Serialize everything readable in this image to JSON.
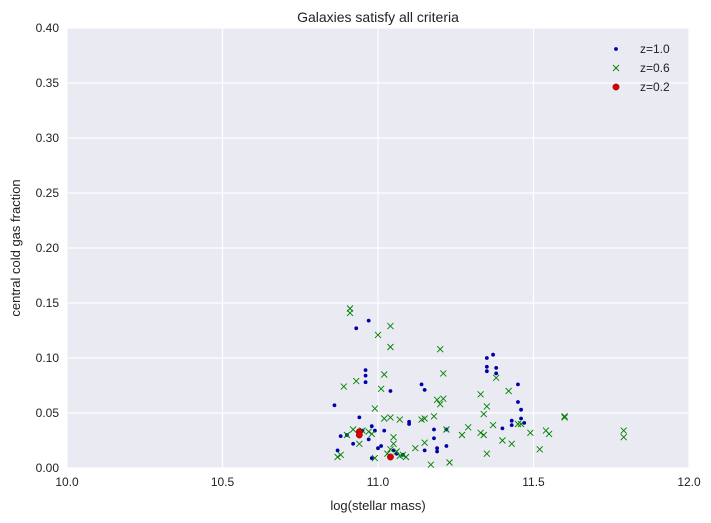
{
  "chart_data": {
    "type": "scatter",
    "title": "Galaxies satisfy all criteria",
    "xlabel": "log(stellar mass)",
    "ylabel": "central cold gas fraction",
    "xlim": [
      10.0,
      12.0
    ],
    "ylim": [
      0.0,
      0.4
    ],
    "xticks": [
      "10.0",
      "10.5",
      "11.0",
      "11.5",
      "12.0"
    ],
    "yticks": [
      "0.00",
      "0.05",
      "0.10",
      "0.15",
      "0.20",
      "0.25",
      "0.30",
      "0.35",
      "0.40"
    ],
    "grid": true,
    "legend_position": "top-right",
    "colors": {
      "background": "#eaeaf2",
      "grid": "#ffffff",
      "z10": "#0000aa",
      "z06": "#008000",
      "z02": "#dd0000"
    },
    "series": [
      {
        "name": "z=1.0",
        "marker": "dot",
        "x": [
          10.86,
          10.87,
          10.88,
          10.9,
          10.92,
          10.93,
          10.94,
          10.94,
          10.95,
          10.96,
          10.96,
          10.96,
          10.97,
          10.98,
          10.98,
          10.99,
          11.0,
          11.01,
          11.02,
          11.04,
          11.05,
          11.06,
          11.1,
          11.1,
          11.14,
          11.15,
          11.15,
          11.18,
          11.18,
          11.19,
          11.19,
          11.22,
          11.22,
          11.35,
          11.35,
          11.35,
          11.37,
          11.38,
          11.38,
          11.43,
          11.43,
          11.45,
          11.45,
          11.46,
          11.46,
          11.47,
          11.4,
          11.08,
          10.97
        ],
        "y": [
          0.057,
          0.016,
          0.029,
          0.03,
          0.022,
          0.127,
          0.046,
          0.034,
          0.034,
          0.089,
          0.084,
          0.078,
          0.134,
          0.009,
          0.038,
          0.034,
          0.018,
          0.02,
          0.034,
          0.07,
          0.016,
          0.013,
          0.042,
          0.04,
          0.076,
          0.071,
          0.016,
          0.035,
          0.027,
          0.018,
          0.015,
          0.035,
          0.02,
          0.1,
          0.092,
          0.088,
          0.103,
          0.091,
          0.086,
          0.043,
          0.039,
          0.076,
          0.06,
          0.053,
          0.045,
          0.041,
          0.036,
          0.012,
          0.026
        ]
      },
      {
        "name": "z=0.6",
        "marker": "x",
        "x": [
          10.87,
          10.88,
          10.89,
          10.9,
          10.91,
          10.91,
          10.92,
          10.93,
          10.94,
          10.95,
          10.97,
          10.98,
          10.99,
          11.0,
          11.01,
          11.02,
          11.02,
          11.03,
          11.04,
          11.04,
          11.04,
          11.05,
          11.05,
          11.06,
          11.07,
          11.07,
          11.08,
          11.09,
          11.12,
          11.14,
          11.15,
          11.17,
          11.18,
          11.19,
          11.2,
          11.2,
          11.21,
          11.21,
          11.22,
          11.23,
          11.27,
          11.29,
          11.33,
          11.33,
          11.34,
          11.34,
          11.35,
          11.35,
          11.37,
          11.38,
          11.4,
          11.42,
          11.43,
          11.45,
          11.46,
          11.49,
          11.52,
          11.54,
          11.55,
          11.6,
          11.6,
          11.79,
          11.79,
          11.15,
          11.04,
          10.99
        ],
        "y": [
          0.01,
          0.012,
          0.074,
          0.03,
          0.145,
          0.141,
          0.035,
          0.079,
          0.022,
          0.034,
          0.033,
          0.031,
          0.054,
          0.121,
          0.072,
          0.085,
          0.045,
          0.013,
          0.129,
          0.11,
          0.046,
          0.028,
          0.022,
          0.015,
          0.011,
          0.044,
          0.012,
          0.01,
          0.018,
          0.044,
          0.045,
          0.003,
          0.047,
          0.062,
          0.108,
          0.058,
          0.063,
          0.086,
          0.035,
          0.005,
          0.03,
          0.037,
          0.067,
          0.032,
          0.03,
          0.049,
          0.056,
          0.013,
          0.039,
          0.082,
          0.025,
          0.07,
          0.022,
          0.04,
          0.04,
          0.032,
          0.017,
          0.034,
          0.031,
          0.047,
          0.046,
          0.034,
          0.028,
          0.023,
          0.017,
          0.009
        ]
      },
      {
        "name": "z=0.2",
        "marker": "circle",
        "x": [
          10.94,
          10.94,
          11.04
        ],
        "y": [
          0.033,
          0.03,
          0.01
        ]
      }
    ]
  }
}
